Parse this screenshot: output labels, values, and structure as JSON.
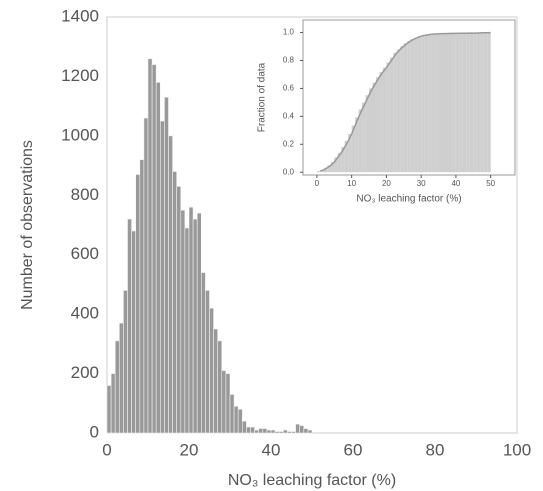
{
  "chart_data": [
    {
      "type": "histogram",
      "xlabel": "NO₃ leaching factor (%)",
      "ylabel": "Number of  observations",
      "bins": [
        0,
        1,
        2,
        3,
        4,
        5,
        6,
        7,
        8,
        9,
        10,
        11,
        12,
        13,
        14,
        15,
        16,
        17,
        18,
        19,
        20,
        21,
        22,
        23,
        24,
        25,
        26,
        27,
        28,
        29,
        30,
        31,
        32,
        33,
        34,
        35,
        36,
        37,
        38,
        39,
        40,
        41,
        42,
        43,
        44,
        45,
        46,
        47,
        48,
        49,
        50
      ],
      "values": [
        160,
        200,
        310,
        370,
        480,
        720,
        680,
        870,
        920,
        1060,
        1260,
        1240,
        1180,
        1050,
        1130,
        1000,
        880,
        830,
        750,
        690,
        760,
        720,
        740,
        540,
        480,
        420,
        350,
        310,
        210,
        200,
        130,
        90,
        80,
        40,
        20,
        20,
        10,
        15,
        15,
        10,
        10,
        5,
        5,
        10,
        5,
        5,
        30,
        25,
        15,
        10
      ],
      "color": "#999999",
      "xlim": [
        0,
        100
      ],
      "xticks": [
        0,
        20,
        40,
        60,
        80,
        100
      ],
      "ylim": [
        0,
        1400
      ],
      "yticks": [
        0,
        200,
        400,
        600,
        800,
        1000,
        1200,
        1400
      ]
    },
    {
      "type": "histogram",
      "cumulative": true,
      "xlabel": "NO₃ leaching factor (%)",
      "ylabel": "Fraction of data",
      "bins": [
        0,
        1,
        2,
        3,
        4,
        5,
        6,
        7,
        8,
        9,
        10,
        11,
        12,
        13,
        14,
        15,
        16,
        17,
        18,
        19,
        20,
        21,
        22,
        23,
        24,
        25,
        26,
        27,
        28,
        29,
        30,
        31,
        32,
        33,
        34,
        35,
        36,
        37,
        38,
        39,
        40,
        41,
        42,
        43,
        44,
        45,
        46,
        47,
        48,
        49,
        50
      ],
      "values": [
        0.008,
        0.017,
        0.032,
        0.049,
        0.072,
        0.106,
        0.139,
        0.18,
        0.224,
        0.274,
        0.334,
        0.393,
        0.449,
        0.499,
        0.552,
        0.6,
        0.641,
        0.681,
        0.717,
        0.749,
        0.785,
        0.82,
        0.855,
        0.88,
        0.903,
        0.923,
        0.94,
        0.954,
        0.964,
        0.974,
        0.98,
        0.984,
        0.988,
        0.99,
        0.991,
        0.992,
        0.992,
        0.993,
        0.994,
        0.994,
        0.995,
        0.995,
        0.995,
        0.996,
        0.996,
        0.996,
        0.998,
        0.999,
        0.999,
        1.0
      ],
      "color": "#cfcfcf",
      "line_color": "#999999",
      "xlim": [
        -4,
        57
      ],
      "xticks": [
        0,
        10,
        20,
        30,
        40,
        50
      ],
      "ylim": [
        -0.02,
        1.09
      ],
      "yticks": [
        {
          "value": 0,
          "label": "0.0"
        },
        {
          "value": 0.2,
          "label": "0.2"
        },
        {
          "value": 0.4,
          "label": "0.4"
        },
        {
          "value": 0.6,
          "label": "0.6"
        },
        {
          "value": 0.8,
          "label": "0.8"
        },
        {
          "value": 1,
          "label": "1.0"
        }
      ]
    }
  ]
}
